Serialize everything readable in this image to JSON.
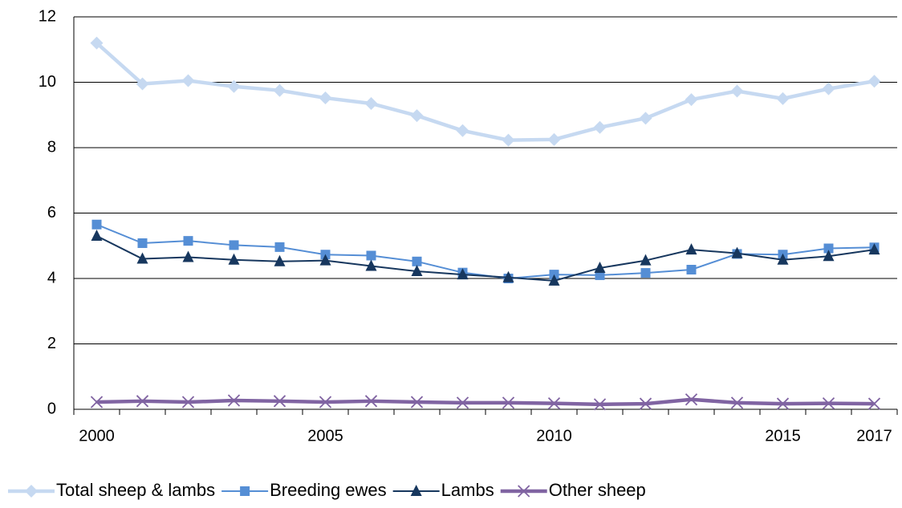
{
  "chart_data": {
    "type": "line",
    "categories": [
      "2000",
      null,
      null,
      null,
      null,
      "2005",
      null,
      null,
      null,
      null,
      "2010",
      null,
      null,
      null,
      null,
      "2015",
      null,
      "2017"
    ],
    "series": [
      {
        "name": "Total sheep & lambs",
        "color": "#c6d9f1",
        "marker": "diamond",
        "values": [
          11.2,
          9.95,
          10.05,
          9.87,
          9.75,
          9.52,
          9.35,
          8.98,
          8.52,
          8.23,
          8.25,
          8.62,
          8.9,
          9.47,
          9.73,
          9.5,
          9.8,
          10.03
        ]
      },
      {
        "name": "Breeding ewes",
        "color": "#558ed5",
        "marker": "square",
        "values": [
          5.65,
          5.08,
          5.15,
          5.02,
          4.96,
          4.73,
          4.7,
          4.52,
          4.18,
          4.0,
          4.12,
          4.1,
          4.17,
          4.27,
          4.75,
          4.73,
          4.92,
          4.95
        ]
      },
      {
        "name": "Lambs",
        "color": "#17375e",
        "marker": "triangle",
        "values": [
          5.3,
          4.6,
          4.65,
          4.57,
          4.52,
          4.55,
          4.38,
          4.22,
          4.12,
          4.03,
          3.93,
          4.32,
          4.55,
          4.88,
          4.77,
          4.57,
          4.68,
          4.88
        ]
      },
      {
        "name": "Other sheep",
        "color": "#8064a2",
        "marker": "x",
        "values": [
          0.22,
          0.25,
          0.22,
          0.27,
          0.25,
          0.22,
          0.25,
          0.22,
          0.2,
          0.2,
          0.18,
          0.15,
          0.17,
          0.3,
          0.2,
          0.17,
          0.18,
          0.17
        ]
      }
    ],
    "ylim": [
      0,
      12
    ],
    "yticks": [
      0,
      2,
      4,
      6,
      8,
      10,
      12
    ],
    "grid": true,
    "legend": "bottom"
  }
}
